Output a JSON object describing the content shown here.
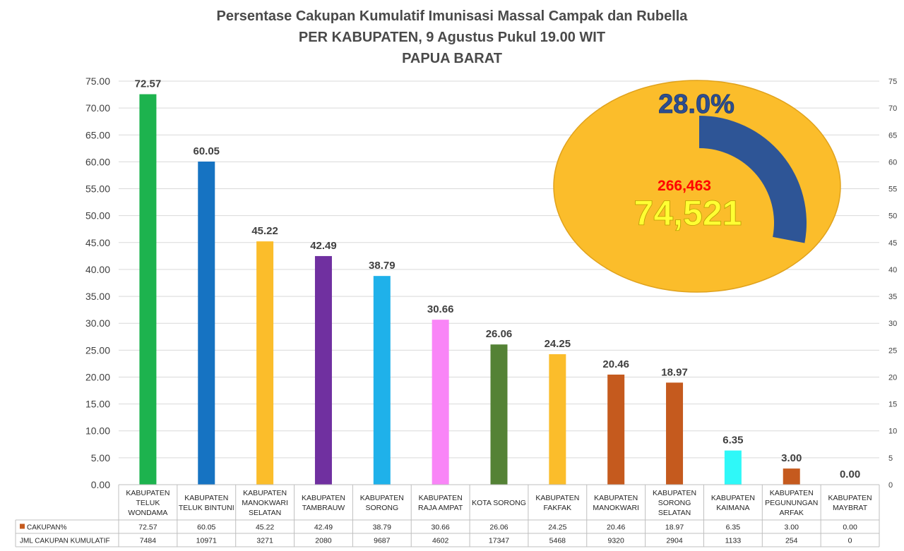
{
  "title": {
    "line1": "Persentase Cakupan Kumulatif Imunisasi Massal Campak dan Rubella",
    "line2": "PER KABUPATEN, 9 Agustus Pukul 19.00 WIT",
    "line3": "PAPUA BARAT"
  },
  "chart_data": {
    "type": "bar",
    "title": "Persentase Cakupan Kumulatif Imunisasi Massal Campak dan Rubella",
    "xlabel": "",
    "ylabel": "",
    "ylim": [
      0,
      75
    ],
    "y_ticks_left": [
      "0.00",
      "5.00",
      "10.00",
      "15.00",
      "20.00",
      "25.00",
      "30.00",
      "35.00",
      "40.00",
      "45.00",
      "50.00",
      "55.00",
      "60.00",
      "65.00",
      "70.00",
      "75.00"
    ],
    "y_ticks_right": [
      "0",
      "5",
      "10",
      "15",
      "20",
      "25",
      "30",
      "35",
      "40",
      "45",
      "50",
      "55",
      "60",
      "65",
      "70",
      "75"
    ],
    "grid": true,
    "categories": [
      [
        "KABUPATEN",
        "TELUK",
        "WONDAMA"
      ],
      [
        "KABUPATEN",
        "TELUK BINTUNI"
      ],
      [
        "KABUPATEN",
        "MANOKWARI",
        "SELATAN"
      ],
      [
        "KABUPATEN",
        "TAMBRAUW"
      ],
      [
        "KABUPATEN",
        "SORONG"
      ],
      [
        "KABUPATEN",
        "RAJA AMPAT"
      ],
      [
        "KOTA SORONG"
      ],
      [
        "KABUPATEN",
        "FAKFAK"
      ],
      [
        "KABUPATEN",
        "MANOKWARI"
      ],
      [
        "KABUPATEN",
        "SORONG",
        "SELATAN"
      ],
      [
        "KABUPATEN",
        "KAIMANA"
      ],
      [
        "KABUPATEN",
        "PEGUNUNGAN",
        "ARFAK"
      ],
      [
        "KABUPATEN",
        "MAYBRAT"
      ]
    ],
    "values": [
      72.57,
      60.05,
      45.22,
      42.49,
      38.79,
      30.66,
      26.06,
      24.25,
      20.46,
      18.97,
      6.35,
      3.0,
      0.0
    ],
    "value_labels": [
      "72.57",
      "60.05",
      "45.22",
      "42.49",
      "38.79",
      "30.66",
      "26.06",
      "24.25",
      "20.46",
      "18.97",
      "6.35",
      "3.00",
      "0.00"
    ],
    "bar_colors": [
      "#1db34e",
      "#1673c2",
      "#fbbd2b",
      "#7030a0",
      "#1fb1ea",
      "#f985f7",
      "#548235",
      "#fbbd2b",
      "#c55a1e",
      "#c55a1e",
      "#2ff8f8",
      "#c55a1e",
      "#c55a1e"
    ],
    "table": {
      "rows": [
        {
          "label": "CAKUPAN%",
          "legend_color": "#c55a1e",
          "values": [
            "72.57",
            "60.05",
            "45.22",
            "42.49",
            "38.79",
            "30.66",
            "26.06",
            "24.25",
            "20.46",
            "18.97",
            "6.35",
            "3.00",
            "0.00"
          ]
        },
        {
          "label": "JML CAKUPAN KUMULATIF",
          "legend_color": "",
          "values": [
            "7484",
            "10971",
            "3271",
            "2080",
            "9687",
            "4602",
            "17347",
            "5468",
            "9320",
            "2904",
            "1133",
            "254",
            "0"
          ]
        }
      ]
    },
    "inset": {
      "type": "donut",
      "percent": 28.0,
      "percent_label": "28.0%",
      "target_label": "266,463",
      "achieved_label": "74,521",
      "ellipse_color": "#fbbd2b",
      "arc_color": "#2e5596"
    }
  }
}
